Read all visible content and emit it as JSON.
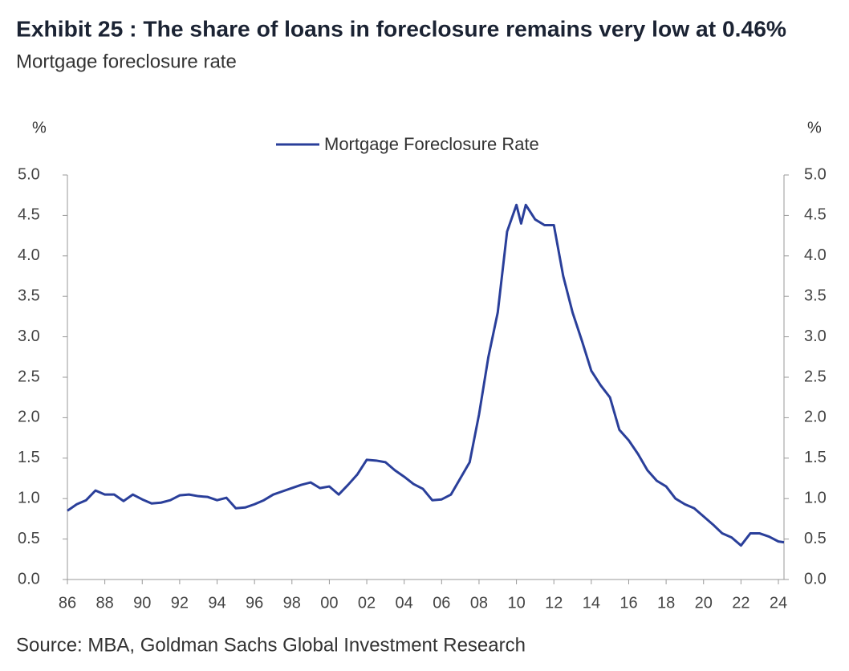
{
  "chart_data": {
    "type": "line",
    "title": "Exhibit 25 : The share of loans in foreclosure remains very low at 0.46%",
    "subtitle": "Mortgage foreclosure rate",
    "source": "Source: MBA, Goldman Sachs Global Investment Research",
    "ylabel": "%",
    "y2label": "%",
    "legend": "top",
    "x": [
      1986,
      1986.5,
      1987,
      1987.5,
      1988,
      1988.5,
      1989,
      1989.5,
      1990,
      1990.5,
      1991,
      1991.5,
      1992,
      1992.5,
      1993,
      1993.5,
      1994,
      1994.5,
      1995,
      1995.5,
      1996,
      1996.5,
      1997,
      1997.5,
      1998,
      1998.5,
      1999,
      1999.5,
      2000,
      2000.5,
      2001,
      2001.5,
      2002,
      2002.5,
      2003,
      2003.5,
      2004,
      2004.5,
      2005,
      2005.5,
      2006,
      2006.5,
      2007,
      2007.5,
      2008,
      2008.5,
      2009,
      2009.5,
      2010,
      2010.25,
      2010.5,
      2011,
      2011.5,
      2012,
      2012.5,
      2013,
      2013.5,
      2014,
      2014.5,
      2015,
      2015.5,
      2016,
      2016.5,
      2017,
      2017.5,
      2018,
      2018.5,
      2019,
      2019.5,
      2020,
      2020.5,
      2021,
      2021.5,
      2022,
      2022.5,
      2023,
      2023.5,
      2024,
      2024.3
    ],
    "series": [
      {
        "name": "Mortgage Foreclosure Rate",
        "color": "#2a3f9a",
        "values": [
          0.85,
          0.93,
          0.98,
          1.1,
          1.05,
          1.05,
          0.97,
          1.05,
          0.99,
          0.94,
          0.95,
          0.98,
          1.04,
          1.05,
          1.03,
          1.02,
          0.98,
          1.01,
          0.88,
          0.89,
          0.93,
          0.98,
          1.05,
          1.09,
          1.13,
          1.17,
          1.2,
          1.13,
          1.15,
          1.05,
          1.17,
          1.3,
          1.48,
          1.47,
          1.45,
          1.35,
          1.27,
          1.18,
          1.12,
          0.98,
          0.99,
          1.05,
          1.25,
          1.45,
          2.04,
          2.75,
          3.3,
          4.3,
          4.63,
          4.4,
          4.63,
          4.45,
          4.38,
          4.38,
          3.75,
          3.3,
          2.95,
          2.58,
          2.4,
          2.25,
          1.85,
          1.72,
          1.55,
          1.35,
          1.22,
          1.15,
          1.0,
          0.93,
          0.88,
          0.78,
          0.68,
          0.57,
          0.52,
          0.42,
          0.57,
          0.57,
          0.53,
          0.47,
          0.46
        ]
      }
    ],
    "xlim": [
      1986,
      2024.3
    ],
    "xticks": [
      {
        "value": 1986,
        "label": "86"
      },
      {
        "value": 1988,
        "label": "88"
      },
      {
        "value": 1990,
        "label": "90"
      },
      {
        "value": 1992,
        "label": "92"
      },
      {
        "value": 1994,
        "label": "94"
      },
      {
        "value": 1996,
        "label": "96"
      },
      {
        "value": 1998,
        "label": "98"
      },
      {
        "value": 2000,
        "label": "00"
      },
      {
        "value": 2002,
        "label": "02"
      },
      {
        "value": 2004,
        "label": "04"
      },
      {
        "value": 2006,
        "label": "06"
      },
      {
        "value": 2008,
        "label": "08"
      },
      {
        "value": 2010,
        "label": "10"
      },
      {
        "value": 2012,
        "label": "12"
      },
      {
        "value": 2014,
        "label": "14"
      },
      {
        "value": 2016,
        "label": "16"
      },
      {
        "value": 2018,
        "label": "18"
      },
      {
        "value": 2020,
        "label": "20"
      },
      {
        "value": 2022,
        "label": "22"
      },
      {
        "value": 2024,
        "label": "24"
      }
    ],
    "ylim": [
      0,
      5
    ],
    "yticks": [
      {
        "value": 0,
        "label": "0.0"
      },
      {
        "value": 0.5,
        "label": "0.5"
      },
      {
        "value": 1,
        "label": "1.0"
      },
      {
        "value": 1.5,
        "label": "1.5"
      },
      {
        "value": 2,
        "label": "2.0"
      },
      {
        "value": 2.5,
        "label": "2.5"
      },
      {
        "value": 3,
        "label": "3.0"
      },
      {
        "value": 3.5,
        "label": "3.5"
      },
      {
        "value": 4,
        "label": "4.0"
      },
      {
        "value": 4.5,
        "label": "4.5"
      },
      {
        "value": 5,
        "label": "5.0"
      }
    ],
    "y2lim": [
      0,
      5
    ],
    "y2ticks": [
      {
        "value": 0,
        "label": "0.0"
      },
      {
        "value": 0.5,
        "label": "0.5"
      },
      {
        "value": 1,
        "label": "1.0"
      },
      {
        "value": 1.5,
        "label": "1.5"
      },
      {
        "value": 2,
        "label": "2.0"
      },
      {
        "value": 2.5,
        "label": "2.5"
      },
      {
        "value": 3,
        "label": "3.0"
      },
      {
        "value": 3.5,
        "label": "3.5"
      },
      {
        "value": 4,
        "label": "4.0"
      },
      {
        "value": 4.5,
        "label": "4.5"
      },
      {
        "value": 5,
        "label": "5.0"
      }
    ],
    "grid": false
  }
}
